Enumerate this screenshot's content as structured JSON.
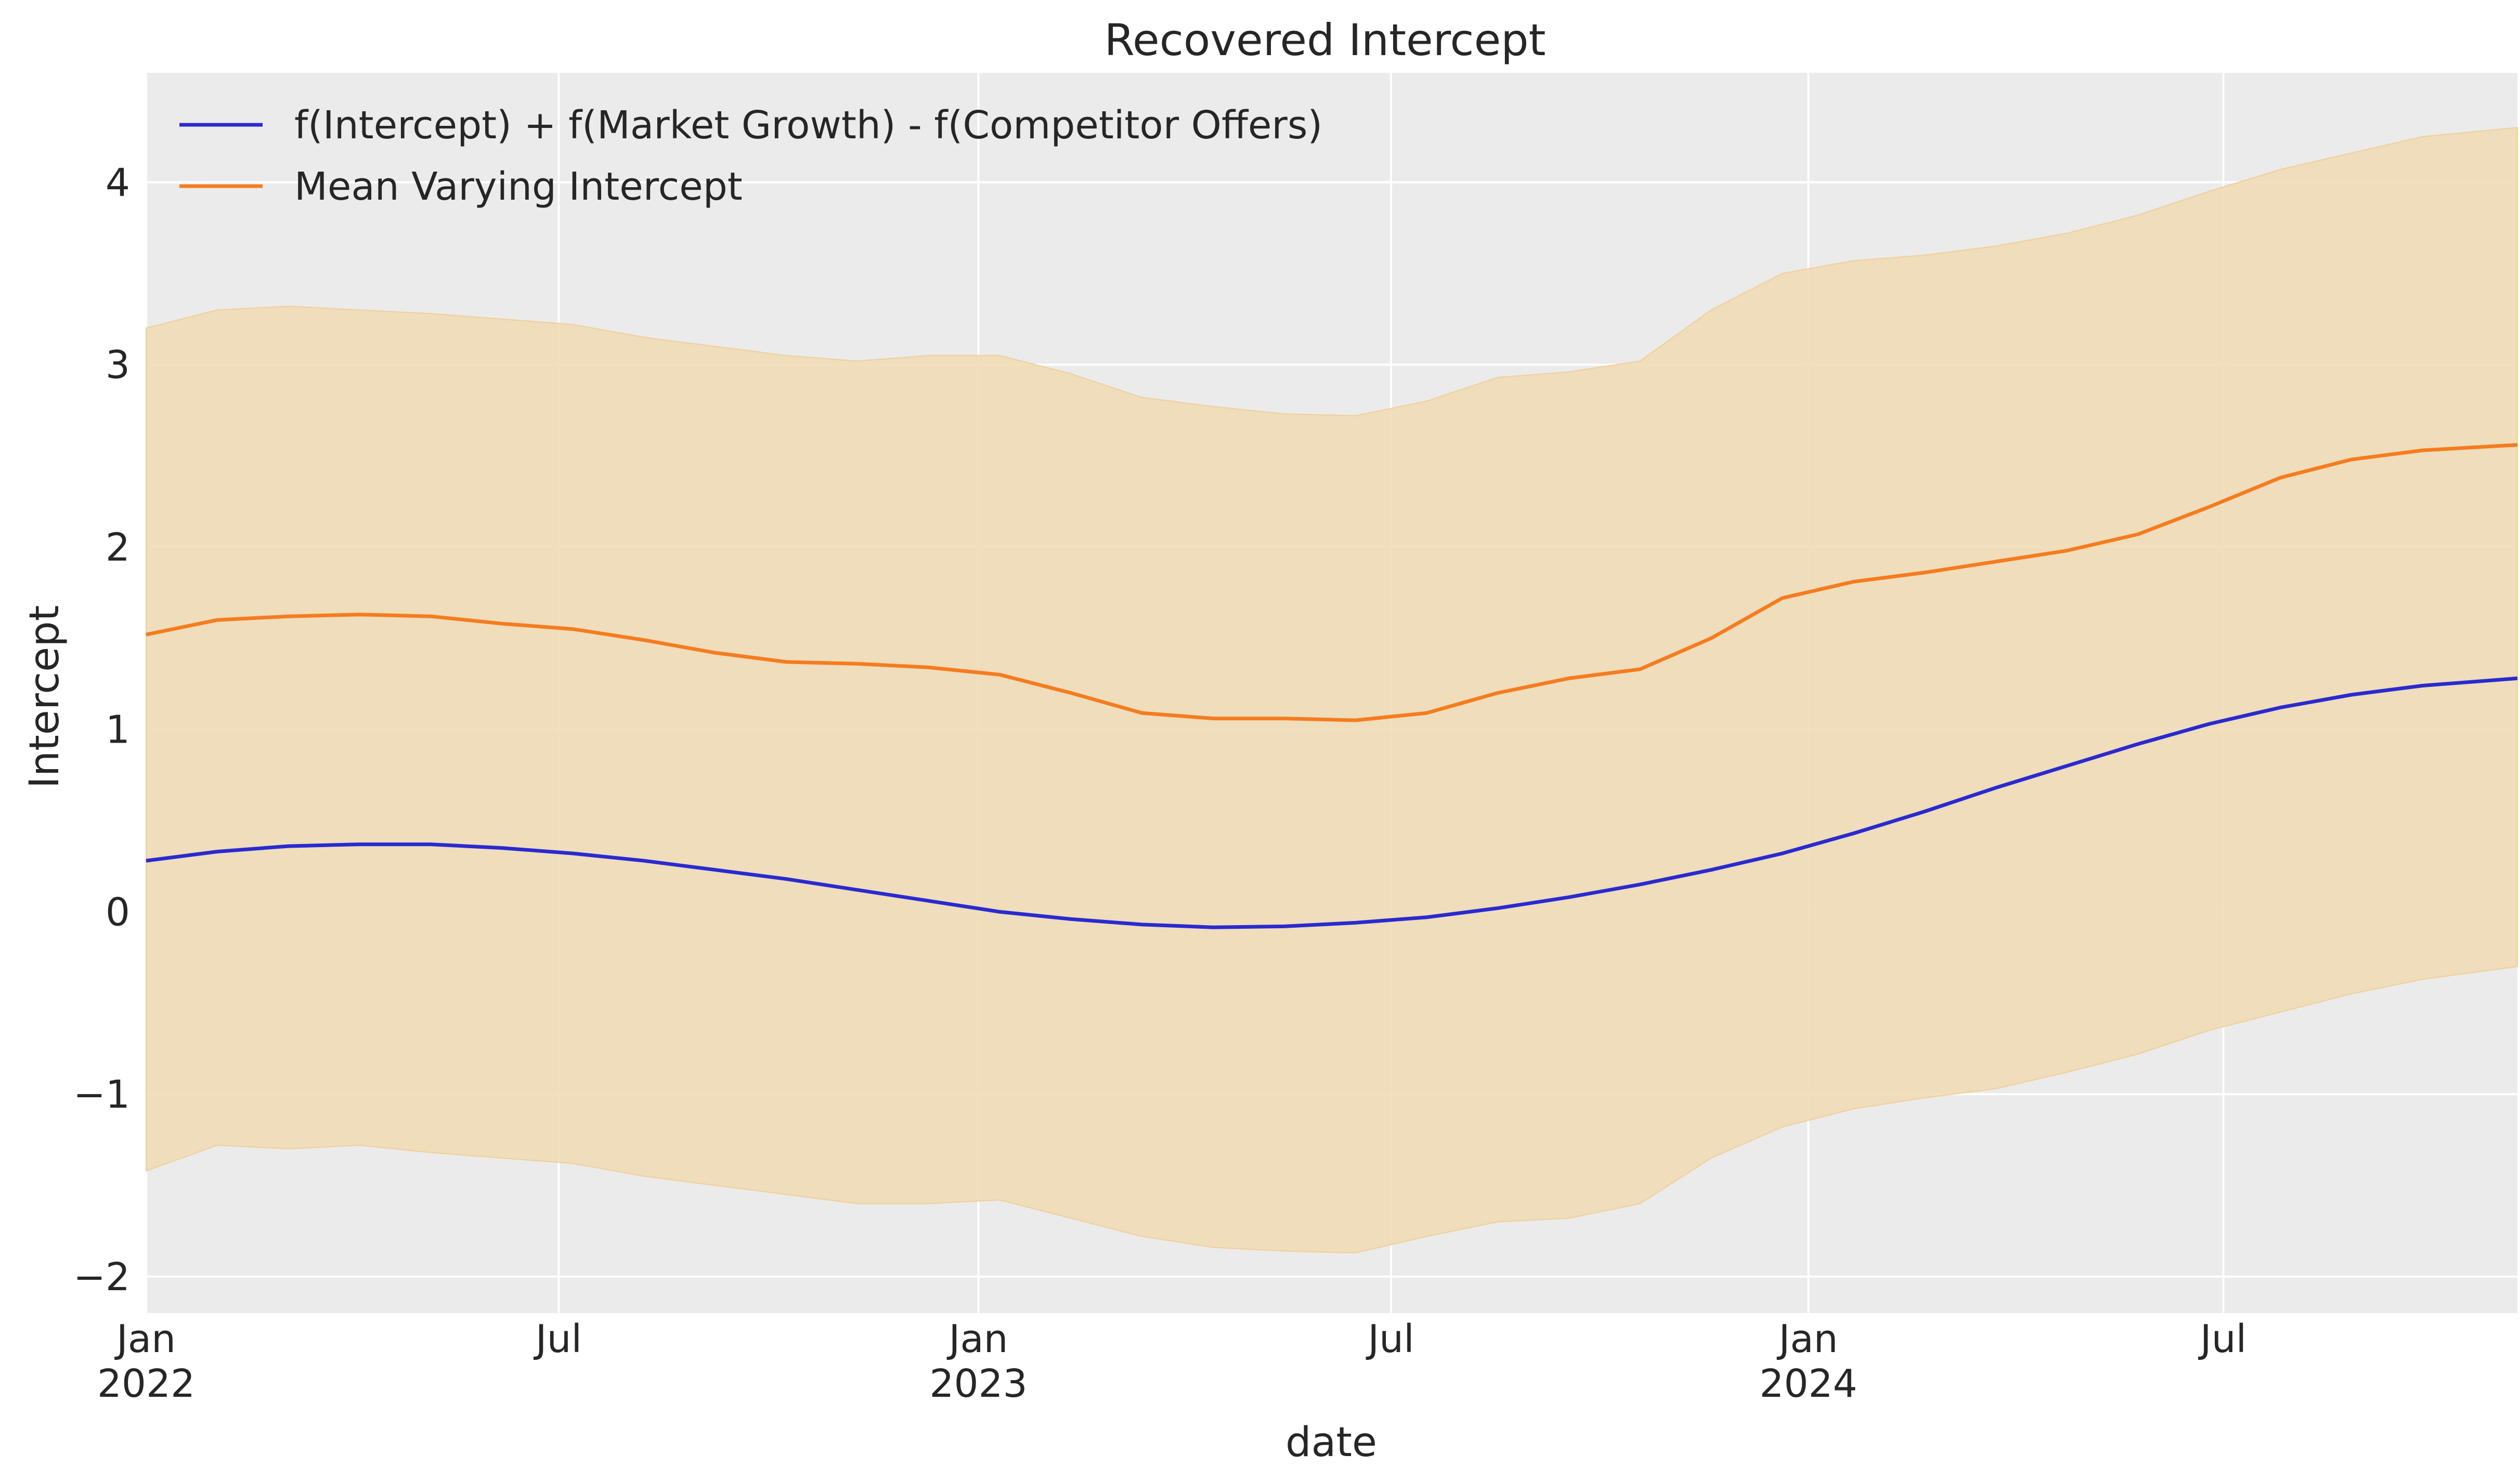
{
  "chart_data": {
    "type": "line",
    "title": "Recovered Intercept",
    "xlabel": "date",
    "ylabel": "Intercept",
    "grid": true,
    "legend_position": "top-left",
    "xlim": [
      0,
      1.0
    ],
    "ylim": [
      -2.2,
      4.6
    ],
    "x_ticks": [
      {
        "pos": 0.0,
        "label": "Jan",
        "sublabel": "2022"
      },
      {
        "pos": 0.174,
        "label": "Jul",
        "sublabel": ""
      },
      {
        "pos": 0.351,
        "label": "Jan",
        "sublabel": "2023"
      },
      {
        "pos": 0.525,
        "label": "Jul",
        "sublabel": ""
      },
      {
        "pos": 0.701,
        "label": "Jan",
        "sublabel": "2024"
      },
      {
        "pos": 0.876,
        "label": "Jul",
        "sublabel": ""
      }
    ],
    "y_ticks": [
      {
        "value": -2,
        "label": "−2"
      },
      {
        "value": -1,
        "label": "−1"
      },
      {
        "value": 0,
        "label": "0"
      },
      {
        "value": 1,
        "label": "1"
      },
      {
        "value": 2,
        "label": "2"
      },
      {
        "value": 3,
        "label": "3"
      },
      {
        "value": 4,
        "label": "4"
      }
    ],
    "x": [
      0.0,
      0.03,
      0.06,
      0.09,
      0.12,
      0.15,
      0.18,
      0.21,
      0.24,
      0.27,
      0.3,
      0.33,
      0.36,
      0.39,
      0.42,
      0.45,
      0.48,
      0.51,
      0.54,
      0.57,
      0.6,
      0.63,
      0.66,
      0.69,
      0.72,
      0.75,
      0.78,
      0.81,
      0.84,
      0.87,
      0.9,
      0.93,
      0.96,
      1.0
    ],
    "series": [
      {
        "name": "f(Intercept) + f(Market Growth) - f(Competitor Offers)",
        "color": "#2a2ad0",
        "values": [
          0.28,
          0.33,
          0.36,
          0.37,
          0.37,
          0.35,
          0.32,
          0.28,
          0.23,
          0.18,
          0.12,
          0.06,
          0.0,
          -0.04,
          -0.07,
          -0.085,
          -0.08,
          -0.06,
          -0.03,
          0.02,
          0.08,
          0.15,
          0.23,
          0.32,
          0.43,
          0.55,
          0.68,
          0.8,
          0.92,
          1.03,
          1.12,
          1.19,
          1.24,
          1.28
        ]
      },
      {
        "name": "Mean Varying Intercept",
        "color": "#f57c1f",
        "values": [
          1.52,
          1.6,
          1.62,
          1.63,
          1.62,
          1.58,
          1.55,
          1.49,
          1.42,
          1.37,
          1.36,
          1.34,
          1.3,
          1.2,
          1.09,
          1.06,
          1.06,
          1.05,
          1.09,
          1.2,
          1.28,
          1.33,
          1.5,
          1.72,
          1.81,
          1.86,
          1.92,
          1.98,
          2.07,
          2.22,
          2.38,
          2.48,
          2.53,
          2.56
        ]
      }
    ],
    "band": {
      "color": "#f0dcb6",
      "upper": [
        3.2,
        3.3,
        3.32,
        3.3,
        3.28,
        3.25,
        3.22,
        3.15,
        3.1,
        3.05,
        3.02,
        3.05,
        3.05,
        2.95,
        2.82,
        2.77,
        2.73,
        2.72,
        2.8,
        2.93,
        2.96,
        3.02,
        3.3,
        3.5,
        3.57,
        3.6,
        3.65,
        3.72,
        3.82,
        3.95,
        4.07,
        4.16,
        4.25,
        4.3
      ],
      "lower": [
        -1.42,
        -1.28,
        -1.3,
        -1.28,
        -1.32,
        -1.35,
        -1.38,
        -1.45,
        -1.5,
        -1.55,
        -1.6,
        -1.6,
        -1.58,
        -1.68,
        -1.78,
        -1.84,
        -1.86,
        -1.87,
        -1.78,
        -1.7,
        -1.68,
        -1.6,
        -1.35,
        -1.18,
        -1.08,
        -1.02,
        -0.97,
        -0.88,
        -0.78,
        -0.65,
        -0.55,
        -0.45,
        -0.37,
        -0.3
      ]
    }
  }
}
